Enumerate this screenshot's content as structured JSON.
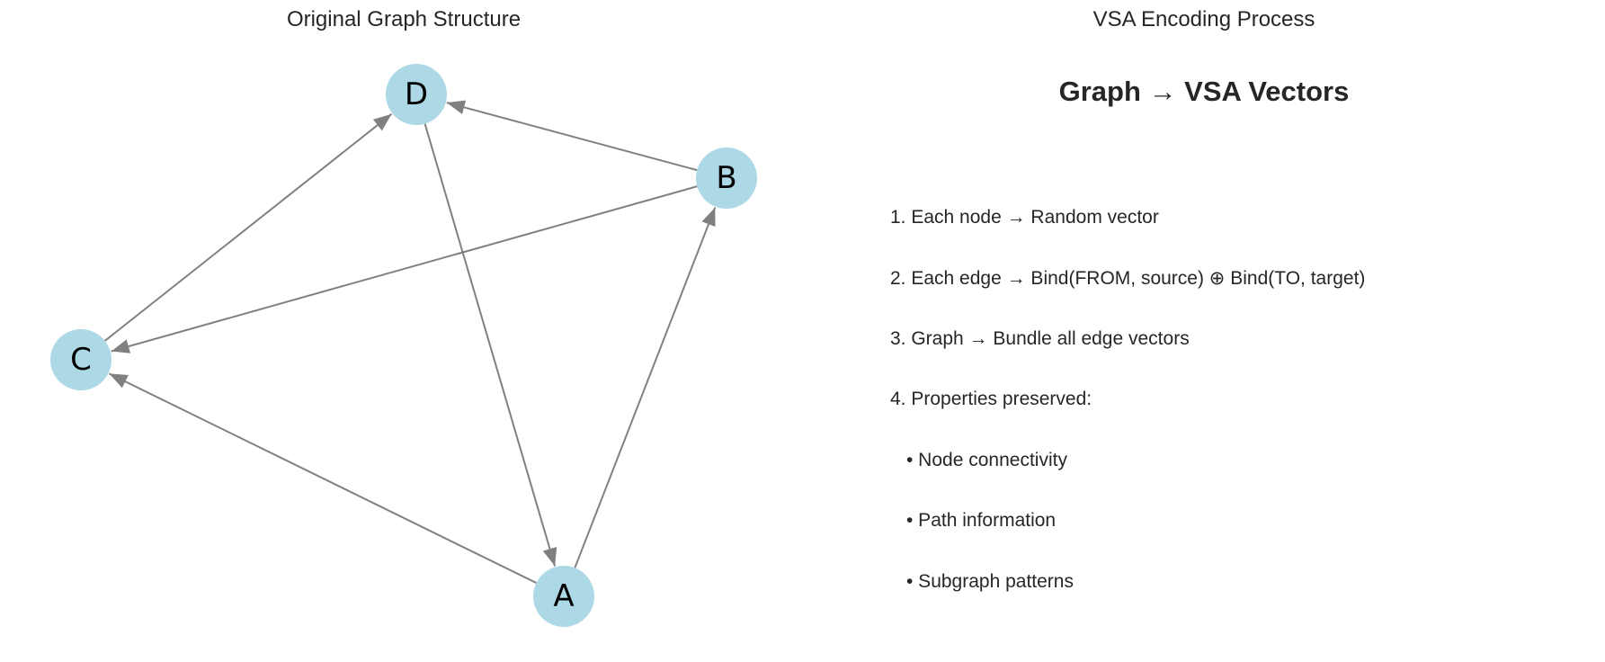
{
  "left_panel": {
    "title": "Original Graph Structure",
    "nodes": [
      {
        "id": "A",
        "label": "A"
      },
      {
        "id": "B",
        "label": "B"
      },
      {
        "id": "C",
        "label": "C"
      },
      {
        "id": "D",
        "label": "D"
      }
    ],
    "edges": [
      {
        "from": "A",
        "to": "B"
      },
      {
        "from": "A",
        "to": "C"
      },
      {
        "from": "B",
        "to": "C"
      },
      {
        "from": "B",
        "to": "D"
      },
      {
        "from": "C",
        "to": "D"
      },
      {
        "from": "D",
        "to": "A"
      }
    ],
    "colors": {
      "node_fill": "#add8e6",
      "edge": "#808080"
    }
  },
  "right_panel": {
    "title": "VSA Encoding Process",
    "headline": "Graph → VSA Vectors",
    "steps": [
      "1. Each node → Random vector",
      "2. Each edge → Bind(FROM, source) ⊕ Bind(TO, target)",
      "3. Graph → Bundle all edge vectors",
      "4. Properties preserved:"
    ],
    "bullets": [
      "• Node connectivity",
      "• Path information",
      "• Subgraph patterns"
    ]
  }
}
